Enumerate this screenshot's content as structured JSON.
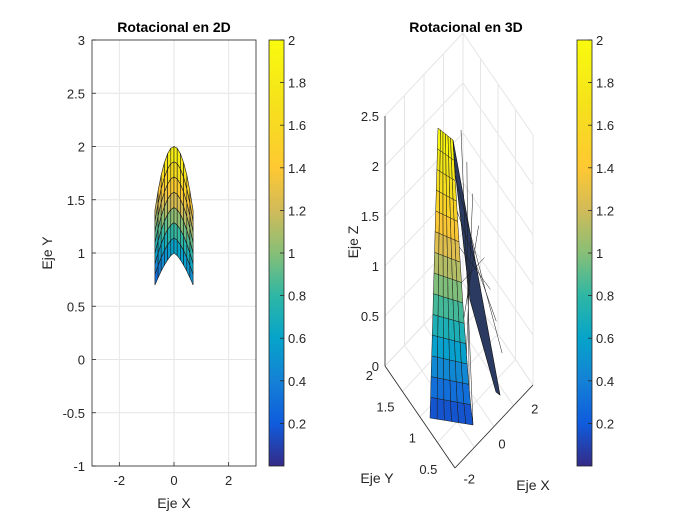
{
  "chart_data": [
    {
      "type": "surface",
      "view": "2d-top",
      "title": "Rotacional en 2D",
      "xlabel": "Eje X",
      "ylabel": "Eje Y",
      "xlim": [
        -3,
        3
      ],
      "ylim": [
        -1,
        3
      ],
      "xticks": [
        -2,
        0,
        2
      ],
      "xtick_labels": [
        "-2",
        "0",
        "2"
      ],
      "yticks": [
        -1,
        -0.5,
        0,
        0.5,
        1,
        1.5,
        2,
        2.5,
        3
      ],
      "ytick_labels": [
        "-1",
        "-0.5",
        "0",
        "0.5",
        "1",
        "1.5",
        "2",
        "2.5",
        "3"
      ],
      "grid": true,
      "surface": {
        "description": "arch-shaped surface: outer arc peaks at y=2, inner arc at y=1, side tips near y=0.7 and y=1.4",
        "outer_peak_y": 2.0,
        "inner_peak_y": 1.0,
        "tip_y": 0.7,
        "side_y": 1.4,
        "half_width_x": 0.7,
        "color_value_range": [
          0,
          2
        ]
      },
      "colorbar": {
        "colormap": "parula",
        "range": [
          0,
          2
        ],
        "ticks": [
          0.2,
          0.4,
          0.6,
          0.8,
          1,
          1.2,
          1.4,
          1.6,
          1.8,
          2
        ],
        "tick_labels": [
          "0.2",
          "0.4",
          "0.6",
          "0.8",
          "1",
          "1.2",
          "1.4",
          "1.6",
          "1.8",
          "2"
        ]
      }
    },
    {
      "type": "surface",
      "view": "3d",
      "title": "Rotacional en 3D",
      "xlabel": "Eje X",
      "ylabel": "Eje Y",
      "zlabel": "Eje Z",
      "xticks": [
        -2,
        0,
        2
      ],
      "xtick_labels": [
        "-2",
        "0",
        "2"
      ],
      "yticks": [
        0.5,
        1,
        1.5,
        2
      ],
      "ytick_labels": [
        "0.5",
        "1",
        "1.5",
        "2"
      ],
      "zlim": [
        0,
        2.5
      ],
      "zticks": [
        0,
        0.5,
        1,
        1.5,
        2,
        2.5
      ],
      "ztick_labels": [
        "0",
        "0.5",
        "1",
        "1.5",
        "2",
        "2.5"
      ],
      "grid": true,
      "colorbar": {
        "colormap": "parula",
        "range": [
          0,
          2
        ],
        "ticks": [
          0.2,
          0.4,
          0.6,
          0.8,
          1,
          1.2,
          1.4,
          1.6,
          1.8,
          2
        ],
        "tick_labels": [
          "0.2",
          "0.4",
          "0.6",
          "0.8",
          "1",
          "1.2",
          "1.4",
          "1.6",
          "1.8",
          "2"
        ]
      }
    }
  ]
}
